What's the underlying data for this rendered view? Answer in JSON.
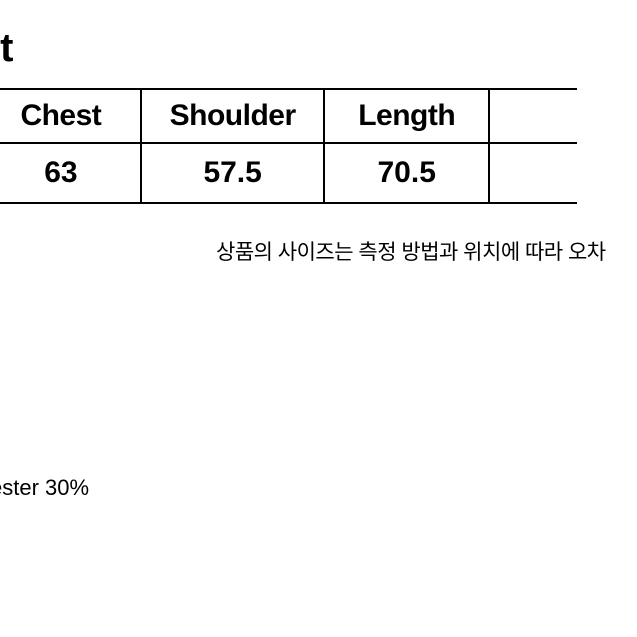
{
  "title_fragment": "it",
  "table": {
    "columns": [
      "",
      "Chest",
      "Shoulder",
      "Length",
      ""
    ],
    "row": [
      "",
      "63",
      "57.5",
      "70.5",
      ""
    ],
    "border_color": "#000000",
    "border_width": 2,
    "header_fontsize": 30,
    "cell_fontsize": 30,
    "header_weight": 700,
    "cell_weight": 900
  },
  "note_text": "상품의 사이즈는 측정 방법과 위치에 따라 오차",
  "material_text": "ester 30%",
  "background_color": "#ffffff",
  "text_color": "#000000"
}
